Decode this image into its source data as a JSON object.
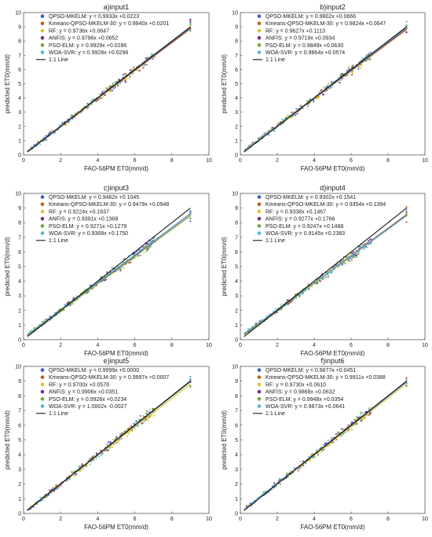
{
  "figure": {
    "xlabel": "FAO-56PM ET0(mm/d)",
    "ylabel": "predicted ET0(mm/d)",
    "xticks": [
      0,
      2,
      4,
      6,
      8,
      10
    ],
    "yticks": [
      0,
      1,
      2,
      3,
      4,
      5,
      6,
      7,
      8,
      9,
      10
    ],
    "line_label": "1:1 Line"
  },
  "series_styles": [
    {
      "model": "QPSO-MKELM",
      "color": "#3a5fcd"
    },
    {
      "model": "Kmeans-QPSO-MKELM-30",
      "color": "#c15f1a"
    },
    {
      "model": "RF",
      "color": "#e0c22a"
    },
    {
      "model": "ANFIS",
      "color": "#7a2a8c"
    },
    {
      "model": "PSO-ELM",
      "color": "#6aa83a"
    },
    {
      "model": "WOA-SVR",
      "color": "#5ab4e5"
    }
  ],
  "chart_data": [
    {
      "type": "scatter",
      "title": "a)input1",
      "xlabel": "FAO-56PM ET0(mm/d)",
      "ylabel": "predicted ET0(mm/d)",
      "xlim": [
        0,
        10
      ],
      "ylim": [
        0,
        10
      ],
      "grid": false,
      "legend_position": "top-left",
      "series": [
        {
          "name": "QPSO-MKELM",
          "legend": "QPSO-MKELM: y = 0.9933x +0.0223",
          "slope": 0.9933,
          "intercept": 0.0223
        },
        {
          "name": "Kmeans-QPSO-MKELM-30",
          "legend": "Kmeans-QPSO-MKELM-30: y = 0.9940x +0.0201",
          "slope": 0.994,
          "intercept": 0.0201
        },
        {
          "name": "RF",
          "legend": "RF: y = 0.9736x +0.0647",
          "slope": 0.9736,
          "intercept": 0.0647
        },
        {
          "name": "ANFIS",
          "legend": "ANFIS: y = 0.9796x +0.0652",
          "slope": 0.9796,
          "intercept": 0.0652
        },
        {
          "name": "PSO-ELM",
          "legend": "PSO-ELM: y = 0.9929x +0.0286",
          "slope": 0.9929,
          "intercept": 0.0286
        },
        {
          "name": "WOA-SVR",
          "legend": "WOA-SVR: y = 0.9928x +0.0298",
          "slope": 0.9928,
          "intercept": 0.0298
        }
      ]
    },
    {
      "type": "scatter",
      "title": "b)input2",
      "xlabel": "FAO-56PM ET0(mm/d)",
      "ylabel": "predicted ET0(mm/d)",
      "xlim": [
        0,
        10
      ],
      "ylim": [
        0,
        10
      ],
      "grid": false,
      "legend_position": "top-left",
      "series": [
        {
          "name": "QPSO-MKELM",
          "legend": "QPSO-MKELM: y = 0.9802x +0.0666",
          "slope": 0.9802,
          "intercept": 0.0666
        },
        {
          "name": "Kmeans-QPSO-MKELM-30",
          "legend": "Kmeans-QPSO-MKELM-30: y = 0.9824x +0.0647",
          "slope": 0.9824,
          "intercept": 0.0647
        },
        {
          "name": "RF",
          "legend": "RF: y = 0.9627x +0.1113",
          "slope": 0.9627,
          "intercept": 0.1113
        },
        {
          "name": "ANFIS",
          "legend": "ANFIS: y = 0.9719x +0.0934",
          "slope": 0.9719,
          "intercept": 0.0934
        },
        {
          "name": "PSO-ELM",
          "legend": "PSO-ELM: y = 0.9849x +0.0630",
          "slope": 0.9849,
          "intercept": 0.063
        },
        {
          "name": "WOA-SVR",
          "legend": "WOA-SVR: y = 0.9864x +0.0574",
          "slope": 0.9864,
          "intercept": 0.0574
        }
      ]
    },
    {
      "type": "scatter",
      "title": "c)input3",
      "xlabel": "FAO-56PM ET0(mm/d)",
      "ylabel": "predicted ET0(mm/d)",
      "xlim": [
        0,
        10
      ],
      "ylim": [
        0,
        10
      ],
      "grid": false,
      "legend_position": "top-left",
      "series": [
        {
          "name": "QPSO-MKELM",
          "legend": "QPSO-MKELM: y = 0.9462x +0.1045",
          "slope": 0.9462,
          "intercept": 0.1045
        },
        {
          "name": "Kmeans-QPSO-MKELM-30",
          "legend": "Kmeans-QPSO-MKELM-30: y = 0.9479x +0.0948",
          "slope": 0.9479,
          "intercept": 0.0948
        },
        {
          "name": "RF",
          "legend": "RF: y = 0.9224x +0.1637",
          "slope": 0.9224,
          "intercept": 0.1637
        },
        {
          "name": "ANFIS",
          "legend": "ANFIS: y = 0.9391x +0.1368",
          "slope": 0.9391,
          "intercept": 0.1368
        },
        {
          "name": "PSO-ELM",
          "legend": "PSO-ELM: y = 0.9271x +0.1279",
          "slope": 0.9271,
          "intercept": 0.1279
        },
        {
          "name": "WOA-SVR",
          "legend": "WOA-SVR: y = 0.9368x +0.1750",
          "slope": 0.9368,
          "intercept": 0.175
        }
      ]
    },
    {
      "type": "scatter",
      "title": "d)input4",
      "xlabel": "FAO-56PM ET0(mm/d)",
      "ylabel": "predicted ET0(mm/d)",
      "xlim": [
        0,
        10
      ],
      "ylim": [
        0,
        10
      ],
      "grid": false,
      "legend_position": "top-left",
      "series": [
        {
          "name": "QPSO-MKELM",
          "legend": "QPSO-MKELM: y = 0.9302x +0.1541",
          "slope": 0.9302,
          "intercept": 0.1541
        },
        {
          "name": "Kmeans-QPSO-MKELM-30",
          "legend": "Kmeans-QPSO-MKELM-30: y = 0.9354x +0.1394",
          "slope": 0.9354,
          "intercept": 0.1394
        },
        {
          "name": "RF",
          "legend": "RF: y = 0.9338x +0.1467",
          "slope": 0.9338,
          "intercept": 0.1467
        },
        {
          "name": "ANFIS",
          "legend": "ANFIS: y = 0.9277x +0.1766",
          "slope": 0.9277,
          "intercept": 0.1766
        },
        {
          "name": "PSO-ELM",
          "legend": "PSO-ELM: y = 0.9247x +0.1488",
          "slope": 0.9247,
          "intercept": 0.1488
        },
        {
          "name": "WOA-SVR",
          "legend": "WOA-SVR: y = 0.9145x +0.2383",
          "slope": 0.9145,
          "intercept": 0.2383
        }
      ]
    },
    {
      "type": "scatter",
      "title": "e)input5",
      "xlabel": "FAO-56PM ET0(mm/d)",
      "ylabel": "predicted ET0(mm/d)",
      "xlim": [
        0,
        10
      ],
      "ylim": [
        0,
        10
      ],
      "grid": false,
      "legend_position": "top-left",
      "series": [
        {
          "name": "QPSO-MKELM",
          "legend": "QPSO-MKELM: y = 0.9999x +0.0000",
          "slope": 0.9999,
          "intercept": 0.0
        },
        {
          "name": "Kmeans-QPSO-MKELM-30",
          "legend": "Kmeans-QPSO-MKELM-30: y = 0.9997x +0.0007",
          "slope": 0.9997,
          "intercept": 0.0007
        },
        {
          "name": "RF",
          "legend": "RF: y = 0.9700x +0.0578",
          "slope": 0.97,
          "intercept": 0.0578
        },
        {
          "name": "ANFIS",
          "legend": "ANFIS: y = 0.9906x +0.0351",
          "slope": 0.9906,
          "intercept": 0.0351
        },
        {
          "name": "PSO-ELM",
          "legend": "PSO-ELM: y = 0.9928x +0.0234",
          "slope": 0.9928,
          "intercept": 0.0234
        },
        {
          "name": "WOA-SVR",
          "legend": "WOA-SVR: y = 1.0002x -0.0027",
          "slope": 1.0002,
          "intercept": -0.0027
        }
      ]
    },
    {
      "type": "scatter",
      "title": "f)input6",
      "xlabel": "FAO-56PM ET0(mm/d)",
      "ylabel": "predicted ET0(mm/d)",
      "xlim": [
        0,
        10
      ],
      "ylim": [
        0,
        10
      ],
      "grid": false,
      "legend_position": "top-left",
      "series": [
        {
          "name": "QPSO-MKELM",
          "legend": "QPSO-MKELM: y = 0.9877x +0.0451",
          "slope": 0.9877,
          "intercept": 0.0451
        },
        {
          "name": "Kmeans-QPSO-MKELM-30",
          "legend": "Kmeans-QPSO-MKELM-30: y = 0.9911x +0.0388",
          "slope": 0.9911,
          "intercept": 0.0388
        },
        {
          "name": "RF",
          "legend": "RF: y = 0.9730x +0.0610",
          "slope": 0.973,
          "intercept": 0.061
        },
        {
          "name": "ANFIS",
          "legend": "ANFIS: y = 0.9868x +0.0632",
          "slope": 0.9868,
          "intercept": 0.0632
        },
        {
          "name": "PSO-ELM",
          "legend": "PSO-ELM: y = 0.9948x +0.0354",
          "slope": 0.9948,
          "intercept": 0.0354
        },
        {
          "name": "WOA-SVR",
          "legend": "WOA-SVR: y = 0.9873x +0.0641",
          "slope": 0.9873,
          "intercept": 0.0641
        }
      ]
    }
  ]
}
